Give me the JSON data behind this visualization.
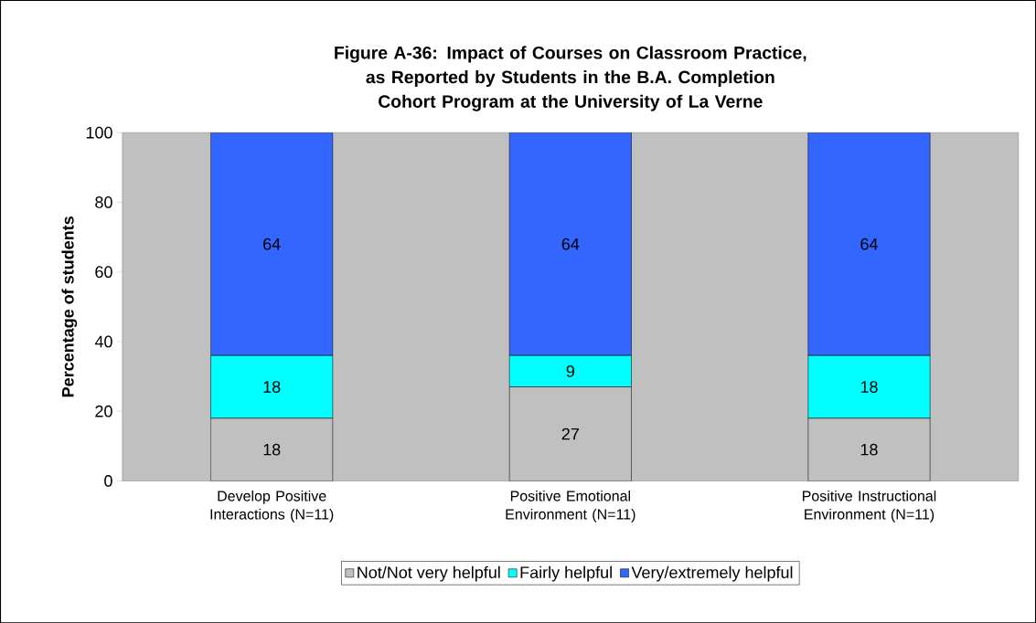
{
  "chart_data": {
    "type": "bar",
    "stacked": true,
    "title": "Figure A-36: Impact of Courses on Classroom Practice, as Reported by Students in the B.A. Completion Cohort Program at the University of La Verne",
    "ylabel": "Percentage of students",
    "categories": [
      "Develop Positive Interactions (N=11)",
      "Positive Emotional Environment (N=11)",
      "Positive Instructional Environment (N=11)"
    ],
    "series": [
      {
        "name": "Not/Not very helpful",
        "color": "#c0c0c0",
        "values": [
          18,
          27,
          18
        ]
      },
      {
        "name": "Fairly helpful",
        "color": "#00ffff",
        "values": [
          18,
          9,
          18
        ]
      },
      {
        "name": "Very/extremely helpful",
        "color": "#3366ff",
        "values": [
          64,
          64,
          64
        ]
      }
    ],
    "ylim": [
      0,
      100
    ],
    "yticks": [
      0,
      20,
      40,
      60,
      80,
      100
    ],
    "data_labels": true,
    "legend": "bottom",
    "grid": false
  }
}
